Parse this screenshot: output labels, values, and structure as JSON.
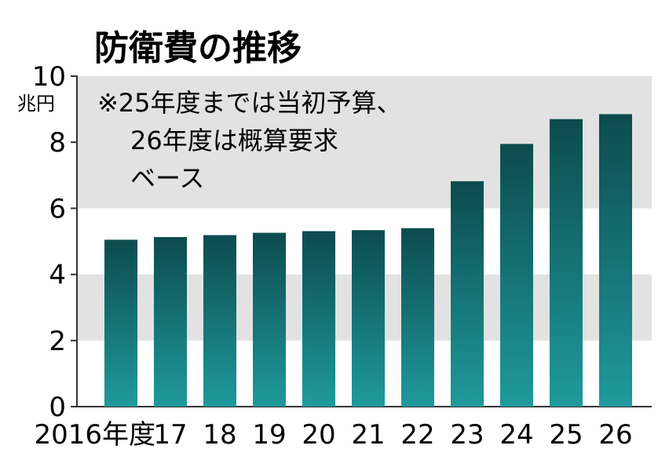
{
  "chart_data": {
    "type": "bar",
    "title": "防衛費の推移",
    "note": [
      "※25年度までは当初予算、",
      "26年度は概算要求",
      "ベース"
    ],
    "ylabel": "兆円",
    "ylim": [
      0,
      10
    ],
    "yticks": [
      "0",
      "2",
      "4",
      "6",
      "8",
      "10"
    ],
    "categories": [
      "2016年度",
      "17",
      "18",
      "19",
      "20",
      "21",
      "22",
      "23",
      "24",
      "25",
      "26"
    ],
    "values": [
      5.05,
      5.13,
      5.19,
      5.26,
      5.31,
      5.34,
      5.4,
      6.82,
      7.95,
      8.7,
      8.85
    ],
    "grid": "alternating horizontal bands",
    "colors": {
      "bar_top": "#0c4b4e",
      "bar_bottom": "#1f9a9c",
      "band": "#e2e2e2"
    }
  }
}
